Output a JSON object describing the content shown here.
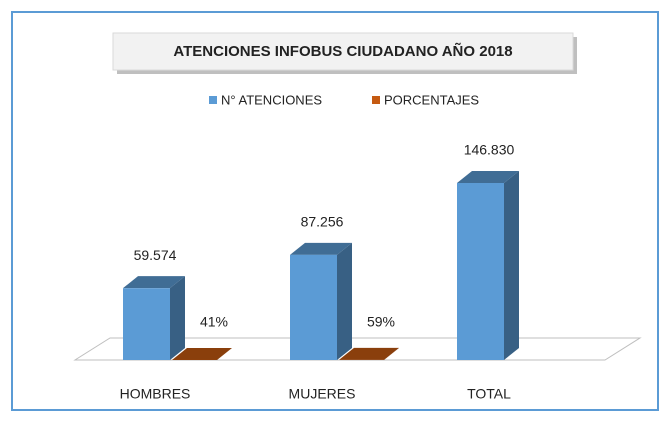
{
  "chart_data": {
    "type": "bar3d",
    "title": "ATENCIONES  INFOBUS CIUDADANO  AÑO  2018",
    "categories": [
      "HOMBRES",
      "MUJERES",
      "TOTAL"
    ],
    "series": [
      {
        "name": "N° ATENCIONES",
        "color": "#5b9bd5",
        "values": [
          59574,
          87256,
          146830
        ],
        "value_labels": [
          "59.574",
          "87.256",
          "146.830"
        ]
      },
      {
        "name": "PORCENTAJES",
        "color": "#c55a11",
        "values": [
          41,
          59,
          null
        ],
        "value_labels": [
          "41%",
          "59%",
          null
        ]
      }
    ],
    "legend": "top"
  }
}
